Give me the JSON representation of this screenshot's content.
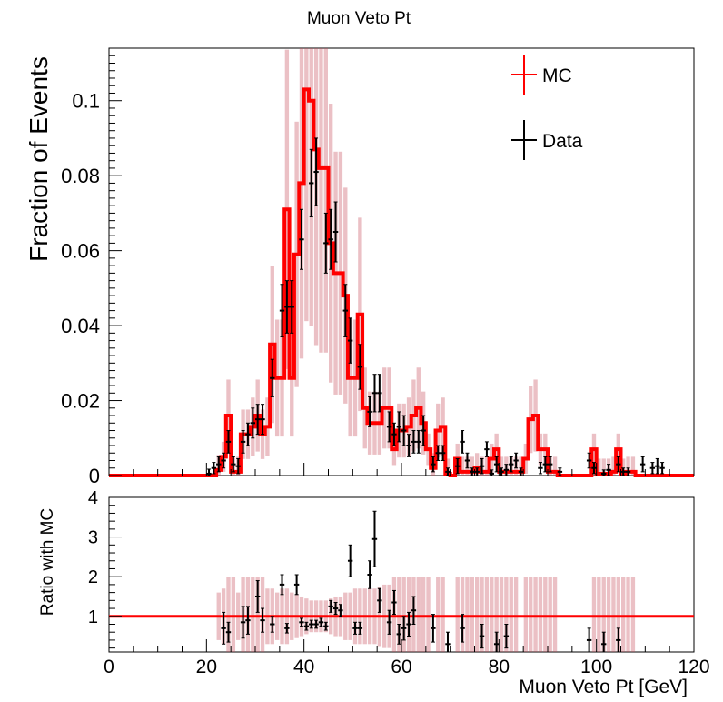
{
  "chart_data": [
    {
      "type": "histogram-with-points",
      "title": "Muon Veto Pt",
      "ylabel": "Fraction of Events",
      "xlim": [
        0,
        120
      ],
      "ylim": [
        0,
        0.114
      ],
      "yticks": [
        "0",
        "0.02",
        "0.04",
        "0.06",
        "0.08",
        "0.1"
      ],
      "grid": false,
      "legend_position": "top-right",
      "legend": [
        {
          "label": "MC",
          "color": "#ff0000"
        },
        {
          "label": "Data",
          "color": "#000000"
        }
      ],
      "bin_width": 1,
      "mc_bins": [
        [
          0,
          0
        ],
        [
          1,
          0
        ],
        [
          2,
          0
        ],
        [
          3,
          0
        ],
        [
          4,
          0
        ],
        [
          5,
          0
        ],
        [
          6,
          0
        ],
        [
          7,
          0
        ],
        [
          8,
          0
        ],
        [
          9,
          0
        ],
        [
          10,
          0
        ],
        [
          11,
          0
        ],
        [
          12,
          0
        ],
        [
          13,
          0
        ],
        [
          14,
          0
        ],
        [
          15,
          0
        ],
        [
          16,
          0
        ],
        [
          17,
          0
        ],
        [
          18,
          0
        ],
        [
          19,
          0
        ],
        [
          20,
          0
        ],
        [
          21,
          0
        ],
        [
          22,
          0.0015
        ],
        [
          23,
          0.005
        ],
        [
          24,
          0.016
        ],
        [
          25,
          0.001
        ],
        [
          26,
          0.001
        ],
        [
          27,
          0.011
        ],
        [
          28,
          0.011
        ],
        [
          29,
          0.013
        ],
        [
          30,
          0.016
        ],
        [
          31,
          0.011
        ],
        [
          32,
          0.013
        ],
        [
          33,
          0.035
        ],
        [
          34,
          0.026
        ],
        [
          35,
          0.026
        ],
        [
          36,
          0.071
        ],
        [
          37,
          0.026
        ],
        [
          38,
          0.059
        ],
        [
          39,
          0.078
        ],
        [
          40,
          0.103
        ],
        [
          41,
          0.1
        ],
        [
          42,
          0.087
        ],
        [
          43,
          0.082
        ],
        [
          44,
          0.082
        ],
        [
          45,
          0.062
        ],
        [
          46,
          0.054
        ],
        [
          47,
          0.054
        ],
        [
          48,
          0.048
        ],
        [
          49,
          0.026
        ],
        [
          50,
          0.026
        ],
        [
          51,
          0.043
        ],
        [
          52,
          0.018
        ],
        [
          53,
          0.014
        ],
        [
          54,
          0.014
        ],
        [
          55,
          0.014
        ],
        [
          56,
          0.018
        ],
        [
          57,
          0.018
        ],
        [
          58,
          0.007
        ],
        [
          59,
          0.012
        ],
        [
          60,
          0.012
        ],
        [
          61,
          0.013
        ],
        [
          62,
          0.016
        ],
        [
          63,
          0.018
        ],
        [
          64,
          0.014
        ],
        [
          65,
          0.007
        ],
        [
          66,
          0.002
        ],
        [
          67,
          0.012
        ],
        [
          68,
          0.013
        ],
        [
          69,
          0.0005
        ],
        [
          70,
          0
        ],
        [
          71,
          0.0045
        ],
        [
          72,
          0.001
        ],
        [
          73,
          0.001
        ],
        [
          74,
          0.001
        ],
        [
          75,
          0.002
        ],
        [
          76,
          0.001
        ],
        [
          77,
          0.001
        ],
        [
          78,
          0.0045
        ],
        [
          79,
          0.007
        ],
        [
          80,
          0.001
        ],
        [
          81,
          0.001
        ],
        [
          82,
          0.001
        ],
        [
          83,
          0.001
        ],
        [
          84,
          0.001
        ],
        [
          85,
          0.0045
        ],
        [
          86,
          0.015
        ],
        [
          87,
          0.016
        ],
        [
          88,
          0.007
        ],
        [
          89,
          0.007
        ],
        [
          90,
          0.001
        ],
        [
          91,
          0.001
        ],
        [
          92,
          0
        ],
        [
          93,
          0
        ],
        [
          94,
          0
        ],
        [
          95,
          0
        ],
        [
          96,
          0
        ],
        [
          97,
          0
        ],
        [
          98,
          0
        ],
        [
          99,
          0.007
        ],
        [
          100,
          0.0005
        ],
        [
          101,
          0.0005
        ],
        [
          102,
          0.0005
        ],
        [
          103,
          0.001
        ],
        [
          104,
          0.007
        ],
        [
          105,
          0.0005
        ],
        [
          106,
          0.001
        ],
        [
          107,
          0.001
        ],
        [
          108,
          0
        ],
        [
          109,
          0
        ],
        [
          110,
          0
        ],
        [
          111,
          0
        ],
        [
          112,
          0
        ],
        [
          113,
          0
        ],
        [
          114,
          0
        ],
        [
          115,
          0
        ],
        [
          116,
          0
        ],
        [
          117,
          0
        ],
        [
          118,
          0
        ],
        [
          119,
          0
        ]
      ],
      "data_points": [
        [
          20.5,
          0.0005,
          0.0012
        ],
        [
          21.5,
          0.002,
          0.0015
        ],
        [
          22.5,
          0.003,
          0.002
        ],
        [
          23.5,
          0.004,
          0.002
        ],
        [
          24.5,
          0.009,
          0.003
        ],
        [
          25.5,
          0.003,
          0.002
        ],
        [
          26.5,
          0.0025,
          0.002
        ],
        [
          27.5,
          0.009,
          0.003
        ],
        [
          28.5,
          0.011,
          0.003
        ],
        [
          29.5,
          0.014,
          0.004
        ],
        [
          30.5,
          0.015,
          0.004
        ],
        [
          31.5,
          0.015,
          0.004
        ],
        [
          33.5,
          0.026,
          0.005
        ],
        [
          35.5,
          0.044,
          0.007
        ],
        [
          36.5,
          0.045,
          0.007
        ],
        [
          37.5,
          0.045,
          0.007
        ],
        [
          39.5,
          0.063,
          0.008
        ],
        [
          41.5,
          0.078,
          0.009
        ],
        [
          42.5,
          0.081,
          0.009
        ],
        [
          44.5,
          0.062,
          0.008
        ],
        [
          45.5,
          0.063,
          0.008
        ],
        [
          46.5,
          0.065,
          0.008
        ],
        [
          48.5,
          0.044,
          0.007
        ],
        [
          49.5,
          0.036,
          0.006
        ],
        [
          51.5,
          0.029,
          0.006
        ],
        [
          53.5,
          0.017,
          0.004
        ],
        [
          54.5,
          0.022,
          0.005
        ],
        [
          55.5,
          0.022,
          0.005
        ],
        [
          57.5,
          0.013,
          0.004
        ],
        [
          58.5,
          0.011,
          0.003
        ],
        [
          59.5,
          0.013,
          0.004
        ],
        [
          60.5,
          0.012,
          0.004
        ],
        [
          61.5,
          0.008,
          0.003
        ],
        [
          62.5,
          0.009,
          0.003
        ],
        [
          63.5,
          0.009,
          0.003
        ],
        [
          64.5,
          0.012,
          0.004
        ],
        [
          66.5,
          0.003,
          0.002
        ],
        [
          67.5,
          0.006,
          0.002
        ],
        [
          68.5,
          0.006,
          0.002
        ],
        [
          69.5,
          0.001,
          0.001
        ],
        [
          71.5,
          0.0025,
          0.002
        ],
        [
          72.5,
          0.009,
          0.003
        ],
        [
          73.5,
          0.004,
          0.002
        ],
        [
          74.5,
          0.001,
          0.001
        ],
        [
          75.5,
          0.001,
          0.001
        ],
        [
          76.5,
          0.0025,
          0.002
        ],
        [
          77.5,
          0.007,
          0.002
        ],
        [
          78.5,
          0.0005,
          0.001
        ],
        [
          79.5,
          0.003,
          0.002
        ],
        [
          80.5,
          0.001,
          0.001
        ],
        [
          81.5,
          0.0015,
          0.0015
        ],
        [
          82.5,
          0.003,
          0.002
        ],
        [
          83.5,
          0.004,
          0.002
        ],
        [
          84.5,
          0.001,
          0.001
        ],
        [
          88.5,
          0.002,
          0.0015
        ],
        [
          89.5,
          0.003,
          0.002
        ],
        [
          90.5,
          0.003,
          0.002
        ],
        [
          92.5,
          0.001,
          0.001
        ],
        [
          98.5,
          0.004,
          0.002
        ],
        [
          99.5,
          0.002,
          0.0015
        ],
        [
          101.5,
          0.0005,
          0.001
        ],
        [
          102.5,
          0.0015,
          0.0015
        ],
        [
          104.5,
          0.003,
          0.002
        ],
        [
          105.5,
          0.001,
          0.001
        ],
        [
          106.5,
          0.001,
          0.001
        ],
        [
          109.5,
          0.003,
          0.002
        ],
        [
          111.5,
          0.002,
          0.0015
        ],
        [
          112.5,
          0.0025,
          0.002
        ],
        [
          113.5,
          0.002,
          0.0015
        ]
      ]
    },
    {
      "type": "ratio",
      "ylabel": "Ratio with MC",
      "xlabel": "Muon Veto Pt [GeV]",
      "xlim": [
        0,
        120
      ],
      "ylim": [
        0.1,
        4
      ],
      "yticks": [
        "1",
        "2",
        "3",
        "4"
      ],
      "xticks": [
        "0",
        "20",
        "40",
        "60",
        "80",
        "100",
        "120"
      ],
      "reference_line": 1,
      "reference_color": "#ff0000",
      "band": [
        [
          22,
          0.6
        ],
        [
          23,
          0.7
        ],
        [
          24,
          1
        ],
        [
          25,
          1
        ],
        [
          26,
          0.6
        ],
        [
          27,
          1
        ],
        [
          28,
          1
        ],
        [
          29,
          1
        ],
        [
          30,
          1
        ],
        [
          31,
          1
        ],
        [
          32,
          0.7
        ],
        [
          33,
          0.7
        ],
        [
          34,
          0.6
        ],
        [
          35,
          0.7
        ],
        [
          36,
          0.7
        ],
        [
          37,
          0.6
        ],
        [
          38,
          0.55
        ],
        [
          39,
          0.5
        ],
        [
          40,
          0.45
        ],
        [
          41,
          0.4
        ],
        [
          42,
          0.4
        ],
        [
          43,
          0.4
        ],
        [
          44,
          0.4
        ],
        [
          45,
          0.45
        ],
        [
          46,
          0.5
        ],
        [
          47,
          0.5
        ],
        [
          48,
          0.6
        ],
        [
          49,
          0.6
        ],
        [
          50,
          0.7
        ],
        [
          51,
          0.7
        ],
        [
          52,
          0.7
        ],
        [
          53,
          0.7
        ],
        [
          54,
          0.7
        ],
        [
          55,
          0.75
        ],
        [
          56,
          0.8
        ],
        [
          57,
          0.8
        ],
        [
          58,
          1
        ],
        [
          59,
          1
        ],
        [
          60,
          1
        ],
        [
          61,
          1
        ],
        [
          62,
          1
        ],
        [
          63,
          1
        ],
        [
          64,
          1
        ],
        [
          65,
          1
        ],
        [
          67,
          1
        ],
        [
          68,
          1
        ],
        [
          71,
          1
        ],
        [
          72,
          1
        ],
        [
          73,
          1
        ],
        [
          74,
          1
        ],
        [
          75,
          1
        ],
        [
          76,
          1
        ],
        [
          77,
          1
        ],
        [
          78,
          1
        ],
        [
          79,
          1
        ],
        [
          80,
          1
        ],
        [
          81,
          1
        ],
        [
          82,
          1
        ],
        [
          83,
          1
        ],
        [
          85,
          1
        ],
        [
          86,
          1
        ],
        [
          87,
          1
        ],
        [
          88,
          1
        ],
        [
          89,
          1
        ],
        [
          90,
          1
        ],
        [
          91,
          1
        ],
        [
          99,
          1
        ],
        [
          100,
          1
        ],
        [
          101,
          1
        ],
        [
          102,
          1
        ],
        [
          103,
          1
        ],
        [
          104,
          1
        ],
        [
          105,
          1
        ],
        [
          106,
          1
        ],
        [
          107,
          1
        ]
      ],
      "points": [
        [
          23.5,
          0.7,
          0.4
        ],
        [
          24.5,
          0.6,
          0.25
        ],
        [
          27.5,
          0.85,
          0.4
        ],
        [
          28.5,
          0.9,
          0.35
        ],
        [
          30.5,
          1.5,
          0.4
        ],
        [
          31.5,
          0.9,
          0.3
        ],
        [
          33.5,
          0.8,
          0.2
        ],
        [
          35.5,
          1.8,
          0.25
        ],
        [
          36.5,
          0.7,
          0.12
        ],
        [
          38.5,
          1.8,
          0.25
        ],
        [
          39.5,
          0.85,
          0.1
        ],
        [
          40.5,
          0.75,
          0.1
        ],
        [
          41.5,
          0.8,
          0.1
        ],
        [
          42.5,
          0.8,
          0.1
        ],
        [
          43.5,
          0.85,
          0.1
        ],
        [
          44.5,
          0.75,
          0.1
        ],
        [
          45.5,
          1.25,
          0.15
        ],
        [
          46.5,
          1.2,
          0.15
        ],
        [
          47.5,
          1.15,
          0.15
        ],
        [
          49.5,
          2.4,
          0.4
        ],
        [
          50.5,
          0.7,
          0.15
        ],
        [
          51.5,
          0.7,
          0.15
        ],
        [
          53.5,
          2.05,
          0.35
        ],
        [
          54.5,
          2.95,
          0.7
        ],
        [
          55.5,
          1.4,
          0.3
        ],
        [
          57.5,
          0.85,
          0.3
        ],
        [
          58.5,
          1.35,
          0.3
        ],
        [
          59.5,
          0.55,
          0.25
        ],
        [
          60.5,
          0.7,
          0.3
        ],
        [
          61.5,
          0.8,
          0.3
        ],
        [
          62.5,
          1.15,
          0.35
        ],
        [
          66.5,
          0.7,
          0.35
        ],
        [
          69.5,
          0.3,
          0.3
        ],
        [
          72.5,
          0.7,
          0.35
        ],
        [
          76.5,
          0.5,
          0.3
        ],
        [
          79.5,
          0.3,
          0.3
        ],
        [
          81.5,
          0.5,
          0.3
        ],
        [
          98.5,
          0.4,
          0.3
        ],
        [
          101.5,
          0.3,
          0.3
        ],
        [
          104.5,
          0.4,
          0.3
        ]
      ]
    }
  ]
}
